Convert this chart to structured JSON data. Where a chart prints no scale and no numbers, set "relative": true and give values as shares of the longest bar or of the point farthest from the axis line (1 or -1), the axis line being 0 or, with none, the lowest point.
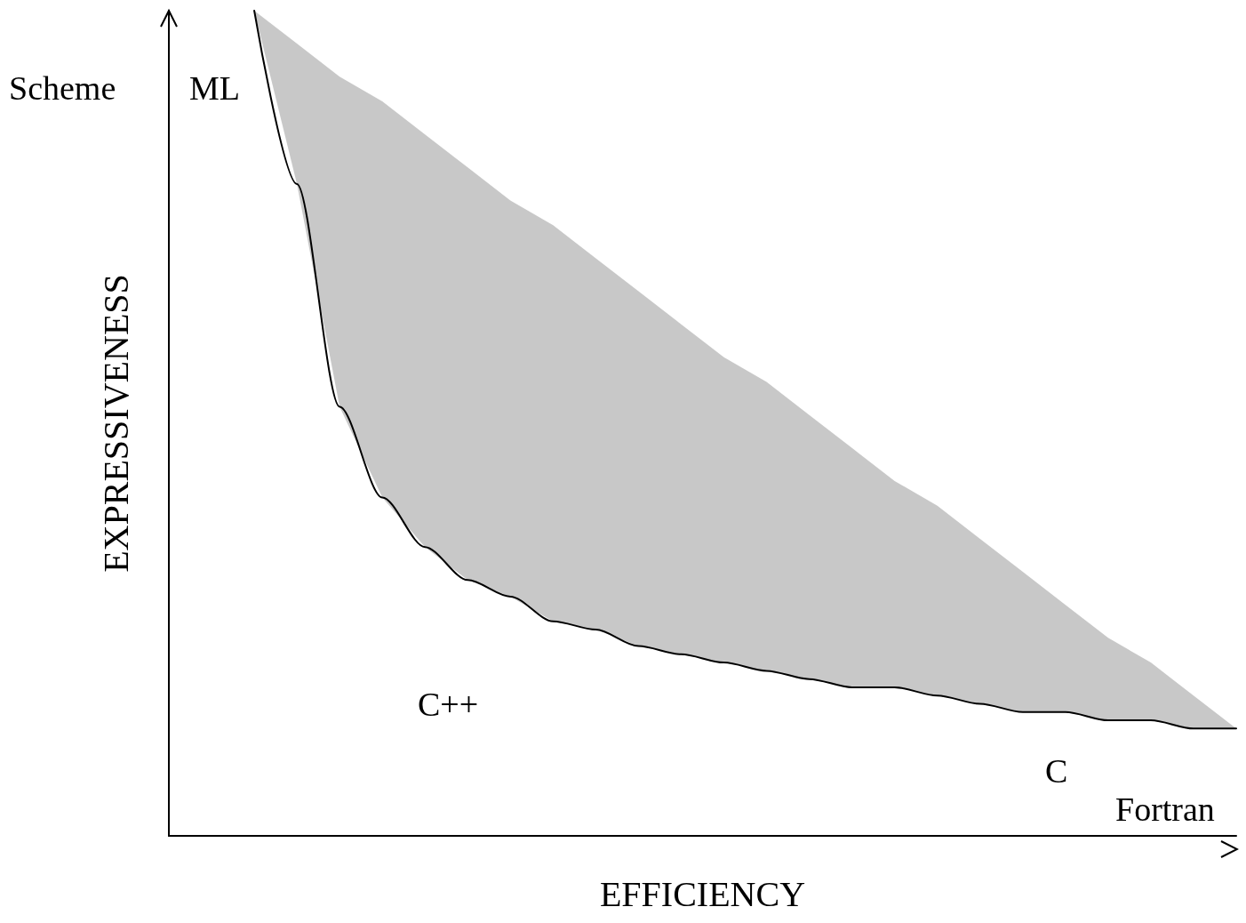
{
  "chart_data": {
    "type": "line",
    "relative": true,
    "xlabel": "EFFICIENCY",
    "ylabel": "EXPRESSIVENESS",
    "marker": "none",
    "line_style": "solid",
    "categories": [
      null,
      null,
      null,
      null,
      null,
      null,
      null,
      null,
      null,
      null,
      null,
      null,
      null,
      null,
      null,
      null,
      null,
      null,
      null,
      null,
      null,
      null,
      null,
      null,
      null,
      null
    ],
    "series": [
      {
        "color": "#000000",
        "values": [
          null,
          null,
          1.0,
          0.79,
          0.52,
          0.41,
          0.35,
          0.31,
          0.29,
          0.26,
          0.25,
          0.23,
          0.22,
          0.21,
          0.2,
          0.19,
          0.18,
          0.18,
          0.17,
          0.16,
          0.15,
          0.15,
          0.14,
          0.14,
          0.13,
          0.13
        ],
        "lower": [
          null,
          null,
          1.0,
          0.79,
          0.52,
          0.41,
          0.35,
          0.31,
          0.29,
          0.26,
          0.25,
          0.23,
          0.22,
          0.21,
          0.2,
          0.19,
          0.18,
          0.18,
          0.17,
          0.16,
          0.15,
          0.15,
          0.14,
          0.14,
          0.13,
          0.13
        ],
        "upper": [
          null,
          null,
          1.0,
          0.96,
          0.92,
          0.89,
          0.85,
          0.81,
          0.77,
          0.74,
          0.7,
          0.66,
          0.62,
          0.58,
          0.55,
          0.51,
          0.47,
          0.43,
          0.4,
          0.36,
          0.32,
          0.28,
          0.24,
          0.21,
          0.17,
          0.13
        ]
      }
    ],
    "annotations": [
      "Scheme",
      "ML",
      "C++",
      "C",
      "Fortran"
    ]
  }
}
